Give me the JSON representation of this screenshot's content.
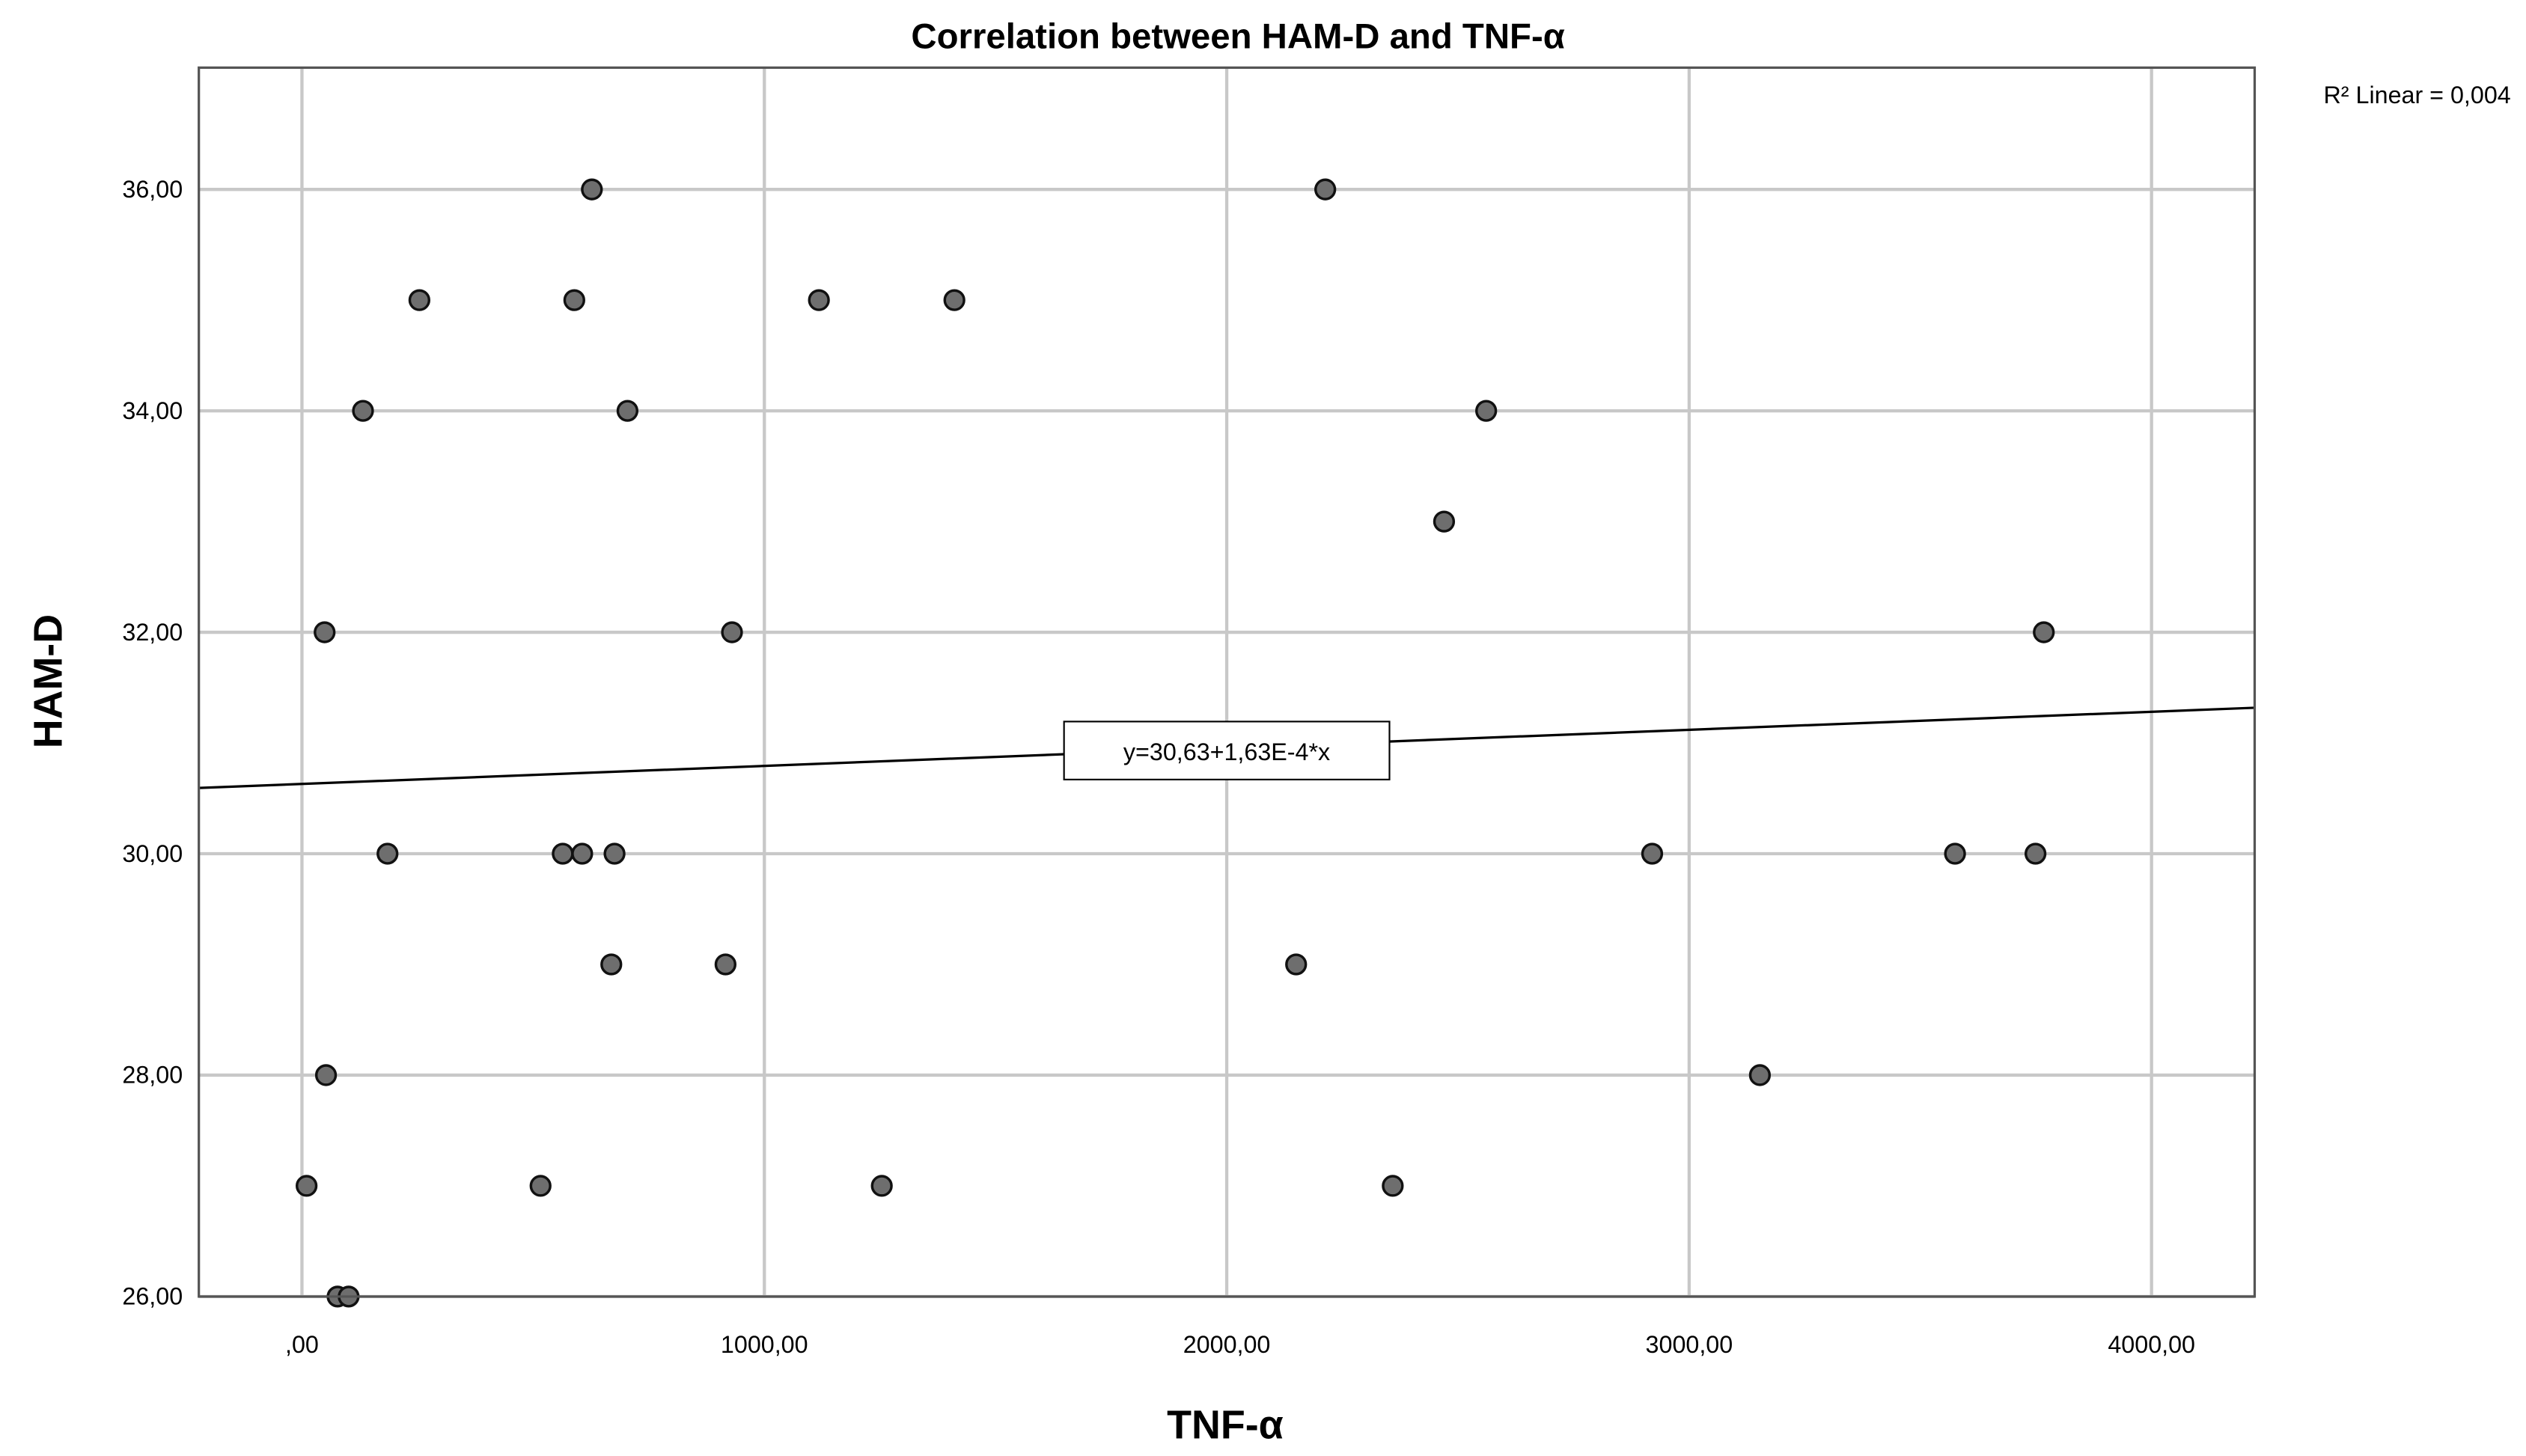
{
  "chart_data": {
    "type": "scatter",
    "title": "Correlation between HAM-D and TNF-α",
    "xlabel": "TNF-α",
    "ylabel": "HAM-D",
    "xlim": [
      -223,
      4223
    ],
    "ylim": [
      26,
      37.1
    ],
    "x_ticks": [
      0,
      1000,
      2000,
      3000,
      4000
    ],
    "x_tick_labels": [
      ",00",
      "1000,00",
      "2000,00",
      "3000,00",
      "4000,00"
    ],
    "y_ticks": [
      26,
      28,
      30,
      32,
      34,
      36
    ],
    "y_tick_labels": [
      "26,00",
      "28,00",
      "30,00",
      "32,00",
      "34,00",
      "36,00"
    ],
    "grid": true,
    "fit": {
      "intercept": 30.63,
      "slope": 0.000163,
      "label": "y=30,63+1,63E-4*x"
    },
    "r2_label": "R² Linear = 0,004",
    "marker_color": "#6e6e6e",
    "points": [
      {
        "x": 627,
        "y": 36
      },
      {
        "x": 2213,
        "y": 36
      },
      {
        "x": 254,
        "y": 35
      },
      {
        "x": 589,
        "y": 35
      },
      {
        "x": 1118,
        "y": 35
      },
      {
        "x": 1411,
        "y": 35
      },
      {
        "x": 132,
        "y": 34
      },
      {
        "x": 704,
        "y": 34
      },
      {
        "x": 2561,
        "y": 34
      },
      {
        "x": 2470,
        "y": 33
      },
      {
        "x": 49,
        "y": 32
      },
      {
        "x": 930,
        "y": 32
      },
      {
        "x": 3767,
        "y": 32
      },
      {
        "x": 185,
        "y": 30
      },
      {
        "x": 564,
        "y": 30
      },
      {
        "x": 606,
        "y": 30
      },
      {
        "x": 676,
        "y": 30
      },
      {
        "x": 2920,
        "y": 30
      },
      {
        "x": 3575,
        "y": 30
      },
      {
        "x": 3749,
        "y": 30
      },
      {
        "x": 669,
        "y": 29
      },
      {
        "x": 916,
        "y": 29
      },
      {
        "x": 2150,
        "y": 29
      },
      {
        "x": 52,
        "y": 28
      },
      {
        "x": 3153,
        "y": 28
      },
      {
        "x": 10,
        "y": 27
      },
      {
        "x": 516,
        "y": 27
      },
      {
        "x": 1254,
        "y": 27
      },
      {
        "x": 2359,
        "y": 27
      },
      {
        "x": 77,
        "y": 26
      },
      {
        "x": 101,
        "y": 26
      }
    ]
  }
}
